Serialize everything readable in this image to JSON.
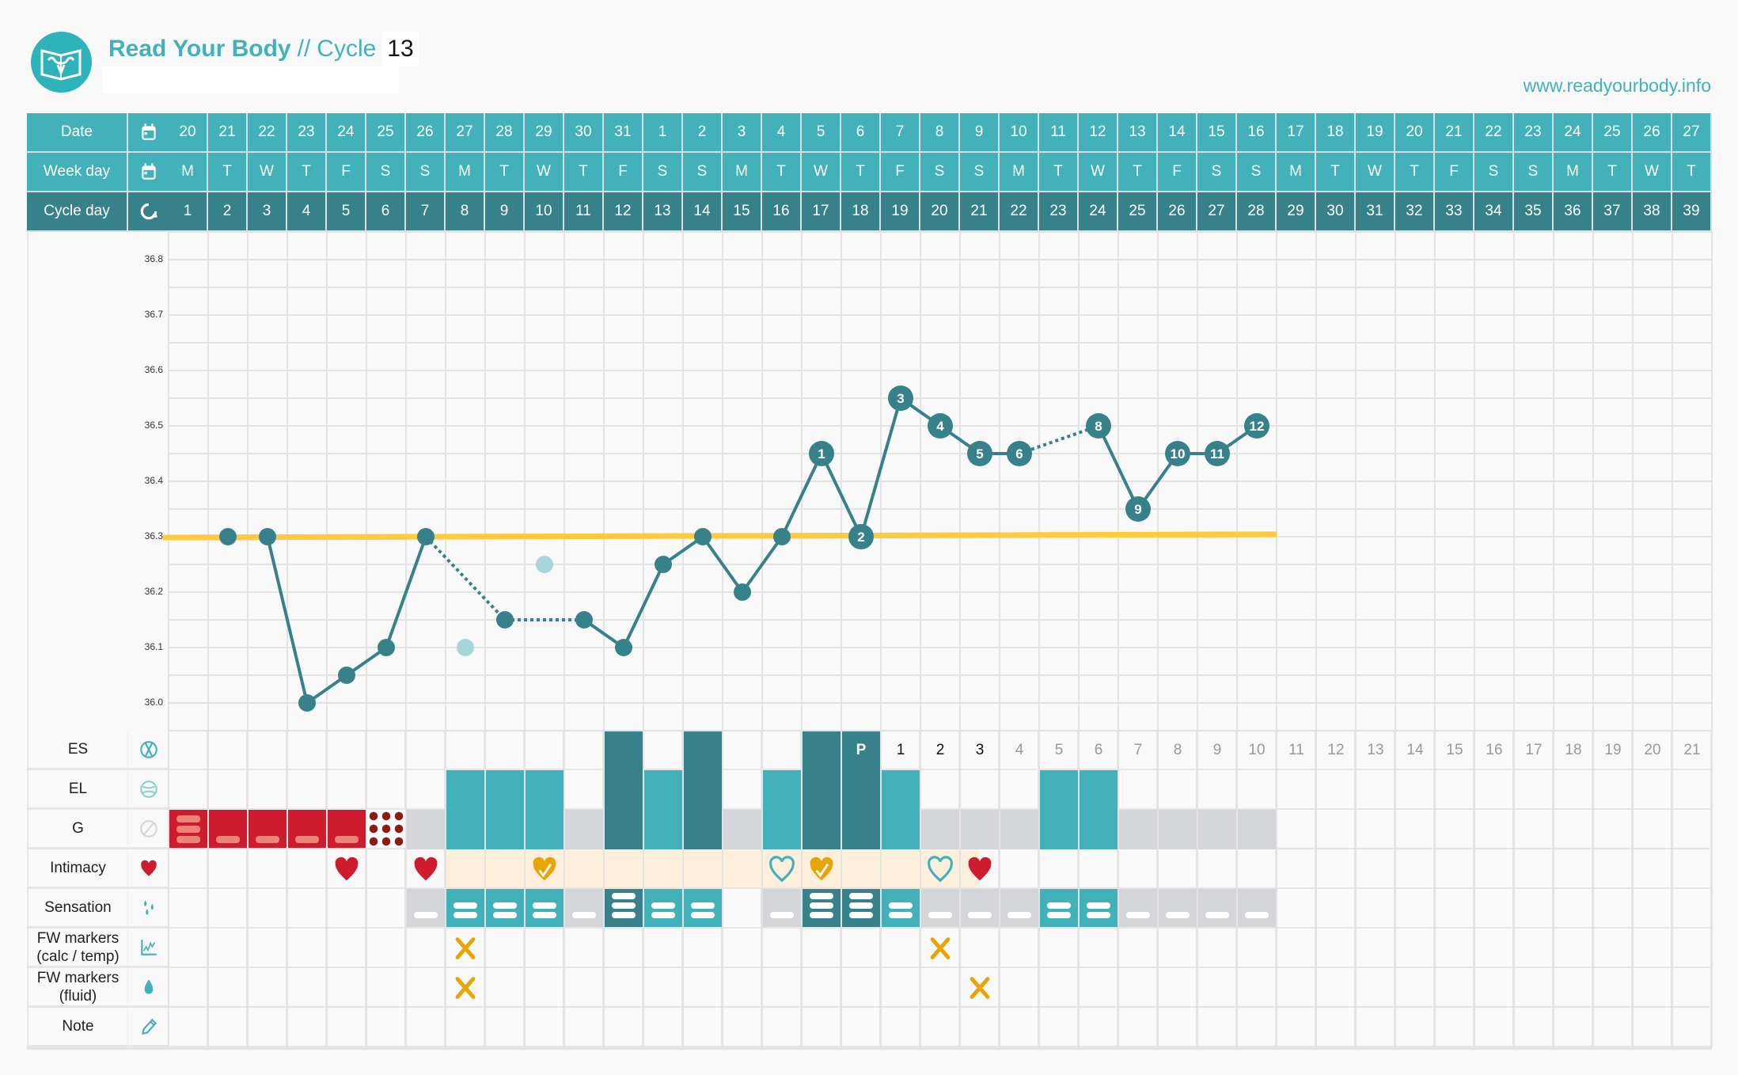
{
  "header": {
    "app_name": "Read Your Body",
    "separator": "//",
    "cycle_label": "Cycle",
    "cycle_number": "13",
    "website": "www.readyourbody.info"
  },
  "row_labels": {
    "date": "Date",
    "week_day": "Week day",
    "cycle_day": "Cycle day",
    "es": "ES",
    "el": "EL",
    "g": "G",
    "intimacy": "Intimacy",
    "sensation": "Sensation",
    "fw_calc": "FW markers\n(calc / temp)",
    "fw_fluid": "FW markers\n(fluid)",
    "note": "Note"
  },
  "row_icons": {
    "date": "calendar-icon",
    "week_day": "calendar-icon",
    "cycle_day": "cycle-refresh-icon",
    "es": "es-icon",
    "el": "el-icon",
    "g": "no-sign-icon",
    "intimacy": "heart-icon",
    "sensation": "drops-icon",
    "fw_calc": "chart-icon",
    "fw_fluid": "drop-icon",
    "note": "pencil-icon"
  },
  "dates": [
    "20",
    "21",
    "22",
    "23",
    "24",
    "25",
    "26",
    "27",
    "28",
    "29",
    "30",
    "31",
    "1",
    "2",
    "3",
    "4",
    "5",
    "6",
    "7",
    "8",
    "9",
    "10",
    "11",
    "12",
    "13",
    "14",
    "15",
    "16",
    "17",
    "18",
    "19",
    "20",
    "21",
    "22",
    "23",
    "24",
    "25",
    "26",
    "27"
  ],
  "week_days": [
    "M",
    "T",
    "W",
    "T",
    "F",
    "S",
    "S",
    "M",
    "T",
    "W",
    "T",
    "F",
    "S",
    "S",
    "M",
    "T",
    "W",
    "T",
    "F",
    "S",
    "S",
    "M",
    "T",
    "W",
    "T",
    "F",
    "S",
    "S",
    "M",
    "T",
    "W",
    "T",
    "F",
    "S",
    "S",
    "M",
    "T",
    "W",
    "T"
  ],
  "cycle_days": [
    "1",
    "2",
    "3",
    "4",
    "5",
    "6",
    "7",
    "8",
    "9",
    "10",
    "11",
    "12",
    "13",
    "14",
    "15",
    "16",
    "17",
    "18",
    "19",
    "20",
    "21",
    "22",
    "23",
    "24",
    "25",
    "26",
    "27",
    "28",
    "29",
    "30",
    "31",
    "32",
    "33",
    "34",
    "35",
    "36",
    "37",
    "38",
    "39"
  ],
  "mucus_bars": {
    "dark_days": [
      12,
      14,
      17,
      18
    ],
    "light_days": [
      8,
      9,
      10,
      13,
      16,
      19,
      23,
      24
    ],
    "gray_days": [
      7,
      11,
      15,
      20,
      21,
      22,
      25,
      26,
      27,
      28
    ]
  },
  "peak": {
    "day": 18,
    "text": "P"
  },
  "post_peak": {
    "start_day": 19,
    "highlighted": 3,
    "counts": [
      "1",
      "2",
      "3",
      "4",
      "5",
      "6",
      "7",
      "8",
      "9",
      "10",
      "11",
      "12",
      "13",
      "14",
      "15",
      "16",
      "17",
      "18",
      "19",
      "20",
      "21"
    ]
  },
  "bleeding": [
    {
      "day": 1,
      "type": "heavy",
      "dashes": 3
    },
    {
      "day": 2,
      "type": "light",
      "dashes": 1
    },
    {
      "day": 3,
      "type": "light",
      "dashes": 1
    },
    {
      "day": 4,
      "type": "light",
      "dashes": 1
    },
    {
      "day": 5,
      "type": "light",
      "dashes": 1
    },
    {
      "day": 6,
      "type": "spotting",
      "dashes": 0
    }
  ],
  "intimacy": {
    "band": {
      "from_day": 8,
      "to_day": 21
    },
    "marks": [
      {
        "day": 5,
        "type": "heart-filled-red"
      },
      {
        "day": 7,
        "type": "heart-filled-red"
      },
      {
        "day": 10,
        "type": "heart-check-yellow"
      },
      {
        "day": 16,
        "type": "heart-outline-teal"
      },
      {
        "day": 17,
        "type": "heart-check-yellow"
      },
      {
        "day": 20,
        "type": "heart-outline-teal"
      },
      {
        "day": 21,
        "type": "heart-filled-red"
      }
    ]
  },
  "sensation": [
    {
      "day": 7,
      "color": "gray",
      "lines": 1
    },
    {
      "day": 8,
      "color": "teal",
      "lines": 2
    },
    {
      "day": 9,
      "color": "teal",
      "lines": 2
    },
    {
      "day": 10,
      "color": "teal",
      "lines": 2
    },
    {
      "day": 11,
      "color": "gray",
      "lines": 1
    },
    {
      "day": 12,
      "color": "dark",
      "lines": 3
    },
    {
      "day": 13,
      "color": "teal",
      "lines": 2
    },
    {
      "day": 14,
      "color": "teal",
      "lines": 2
    },
    {
      "day": 16,
      "color": "gray",
      "lines": 1
    },
    {
      "day": 17,
      "color": "dark",
      "lines": 3
    },
    {
      "day": 18,
      "color": "dark",
      "lines": 3
    },
    {
      "day": 19,
      "color": "teal",
      "lines": 2
    },
    {
      "day": 20,
      "color": "gray",
      "lines": 1
    },
    {
      "day": 21,
      "color": "gray",
      "lines": 1
    },
    {
      "day": 22,
      "color": "gray",
      "lines": 1
    },
    {
      "day": 23,
      "color": "teal",
      "lines": 2
    },
    {
      "day": 24,
      "color": "teal",
      "lines": 2
    },
    {
      "day": 25,
      "color": "gray",
      "lines": 1
    },
    {
      "day": 26,
      "color": "gray",
      "lines": 1
    },
    {
      "day": 27,
      "color": "gray",
      "lines": 1
    },
    {
      "day": 28,
      "color": "gray",
      "lines": 1
    }
  ],
  "fw_calc_marks": [
    8,
    20
  ],
  "fw_fluid_marks": [
    8,
    21
  ],
  "colors": {
    "teal": "#43b1ba",
    "dark_teal": "#37818a",
    "red": "#ce1c2e",
    "pink_dash": "#ec8578",
    "spot": "#8b1a12",
    "gray": "#d4d5d8",
    "peach": "#fdefdc",
    "yellow_line": "#ffc940",
    "x_mark": "#e8a400",
    "excluded": "#a8d5d8"
  },
  "chart_data": {
    "type": "line",
    "ylim": [
      35.95,
      36.85
    ],
    "y_ticks": [
      "36.0",
      "36.1",
      "36.2",
      "36.3",
      "36.4",
      "36.5",
      "36.6",
      "36.7",
      "36.8"
    ],
    "grid": true,
    "coverline": {
      "value": 36.3,
      "from_day": 1,
      "to_day": 28
    },
    "points": [
      {
        "day": 2,
        "temp": 36.3
      },
      {
        "day": 3,
        "temp": 36.3,
        "link": "solid"
      },
      {
        "day": 4,
        "temp": 36.0,
        "link": "solid"
      },
      {
        "day": 5,
        "temp": 36.05,
        "link": "solid"
      },
      {
        "day": 6,
        "temp": 36.1,
        "link": "solid"
      },
      {
        "day": 7,
        "temp": 36.3,
        "link": "solid"
      },
      {
        "day": 8,
        "temp": 36.1,
        "excluded": true
      },
      {
        "day": 9,
        "temp": 36.15,
        "link": "dotted"
      },
      {
        "day": 10,
        "temp": 36.25,
        "excluded": true
      },
      {
        "day": 11,
        "temp": 36.15,
        "link": "dotted"
      },
      {
        "day": 12,
        "temp": 36.1,
        "link": "solid"
      },
      {
        "day": 13,
        "temp": 36.25,
        "link": "solid"
      },
      {
        "day": 14,
        "temp": 36.3,
        "link": "solid"
      },
      {
        "day": 15,
        "temp": 36.2,
        "link": "solid"
      },
      {
        "day": 16,
        "temp": 36.3,
        "link": "solid"
      },
      {
        "day": 17,
        "temp": 36.45,
        "link": "solid",
        "label": "1"
      },
      {
        "day": 18,
        "temp": 36.3,
        "link": "solid",
        "label": "2"
      },
      {
        "day": 19,
        "temp": 36.55,
        "link": "solid",
        "label": "3"
      },
      {
        "day": 20,
        "temp": 36.5,
        "link": "solid",
        "label": "4"
      },
      {
        "day": 21,
        "temp": 36.45,
        "link": "solid",
        "label": "5"
      },
      {
        "day": 22,
        "temp": 36.45,
        "link": "solid",
        "label": "6"
      },
      {
        "day": 24,
        "temp": 36.5,
        "link": "dotted",
        "label": "8"
      },
      {
        "day": 25,
        "temp": 36.35,
        "link": "solid",
        "label": "9"
      },
      {
        "day": 26,
        "temp": 36.45,
        "link": "solid",
        "label": "10"
      },
      {
        "day": 27,
        "temp": 36.45,
        "link": "solid",
        "label": "11"
      },
      {
        "day": 28,
        "temp": 36.5,
        "link": "solid",
        "label": "12"
      }
    ]
  }
}
